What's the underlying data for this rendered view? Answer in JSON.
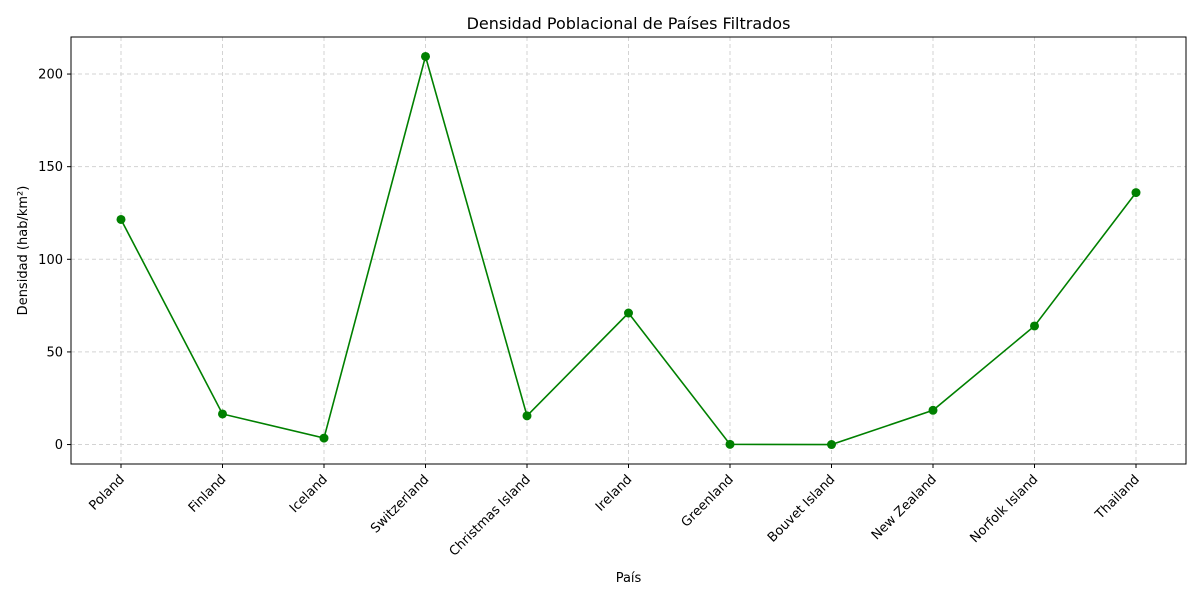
{
  "chart_data": {
    "type": "line",
    "title": "Densidad Poblacional de Países Filtrados",
    "xlabel": "País",
    "ylabel": "Densidad (hab/km²)",
    "categories": [
      "Poland",
      "Finland",
      "Iceland",
      "Switzerland",
      "Christmas Island",
      "Ireland",
      "Greenland",
      "Bouvet Island",
      "New Zealand",
      "Norfolk Island",
      "Thailand"
    ],
    "series": [
      {
        "values": [
          121.5,
          16.5,
          3.5,
          209.5,
          15.5,
          71.0,
          0.1,
          0.0,
          18.5,
          64.0,
          136.0
        ],
        "color": "#008000",
        "marker": "circle"
      }
    ],
    "ylim": [
      -10.5,
      220
    ],
    "yticks": [
      0,
      50,
      100,
      150,
      200
    ],
    "grid": true,
    "grid_style": "dashed"
  }
}
